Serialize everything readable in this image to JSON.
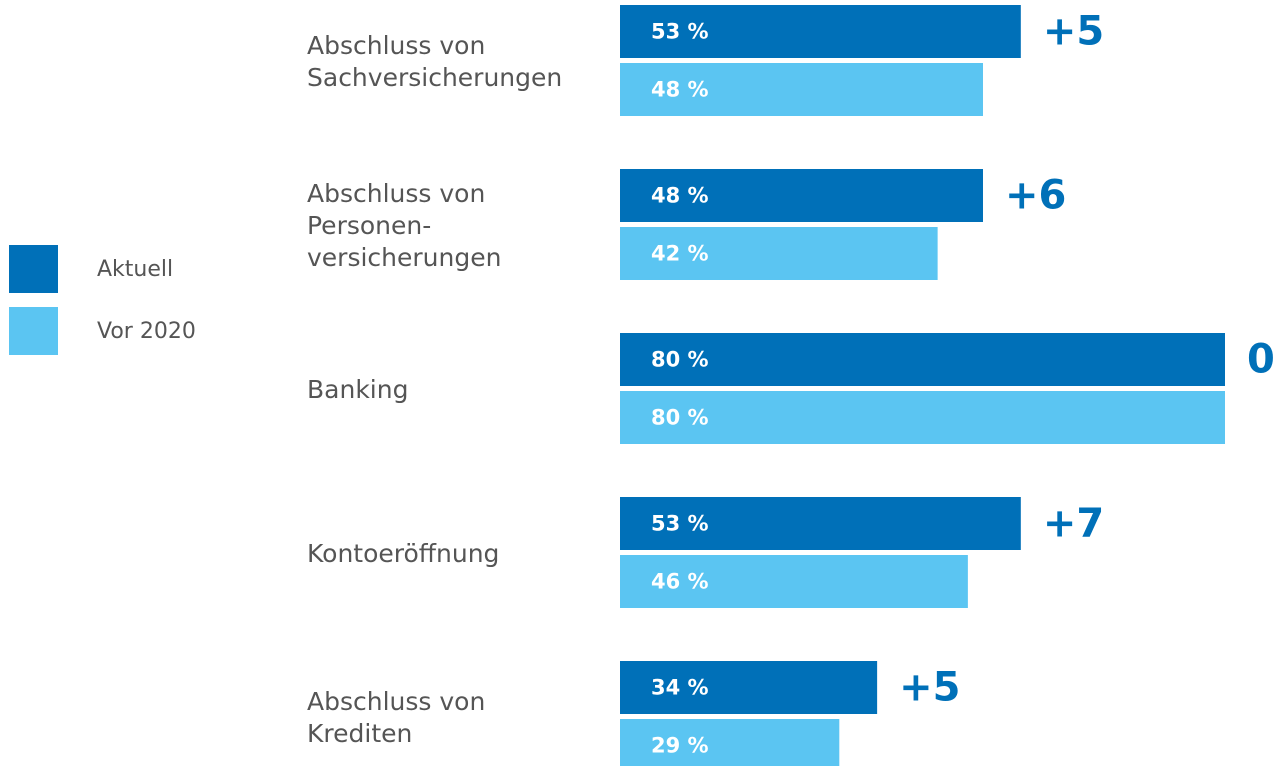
{
  "chart_data": {
    "type": "bar",
    "orientation": "horizontal",
    "categories": [
      [
        "Abschluss von",
        "Sachversicherungen"
      ],
      [
        "Abschluss von",
        "Personen-",
        "versicherungen"
      ],
      [
        "Banking"
      ],
      [
        "Kontoeröffnung"
      ],
      [
        "Abschluss von",
        "Krediten"
      ]
    ],
    "series": [
      {
        "name": "Aktuell",
        "color": "#0070b8",
        "values": [
          53,
          48,
          80,
          53,
          34
        ],
        "value_labels": [
          "53 %",
          "48 %",
          "80 %",
          "53 %",
          "34 %"
        ]
      },
      {
        "name": "Vor 2020",
        "color": "#5bc5f2",
        "values": [
          48,
          42,
          80,
          46,
          29
        ],
        "value_labels": [
          "48 %",
          "42 %",
          "80 %",
          "46 %",
          "29 %"
        ]
      }
    ],
    "annotations": [
      "+5",
      "+6",
      "0",
      "+7",
      "+5"
    ]
  }
}
